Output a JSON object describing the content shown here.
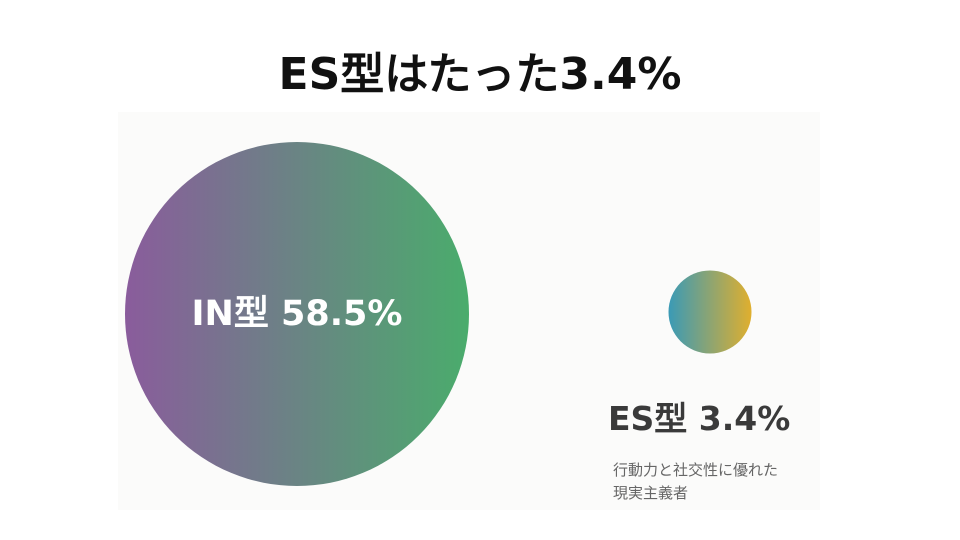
{
  "slide": {
    "title": "ES型はたった3.4%"
  },
  "chart_data": {
    "type": "bubble",
    "title": "ES型はたった3.4%",
    "series": [
      {
        "label": "IN型 58.5%",
        "value": 58.5,
        "gradient": [
          "#8a5c9c",
          "#4aac6c"
        ]
      },
      {
        "label": "ES型 3.4%",
        "value": 3.4,
        "gradient": [
          "#3a9ab6",
          "#e0af2e"
        ],
        "description_lines": [
          "行動力と社交性に優れた",
          "現実主義者"
        ]
      }
    ]
  }
}
